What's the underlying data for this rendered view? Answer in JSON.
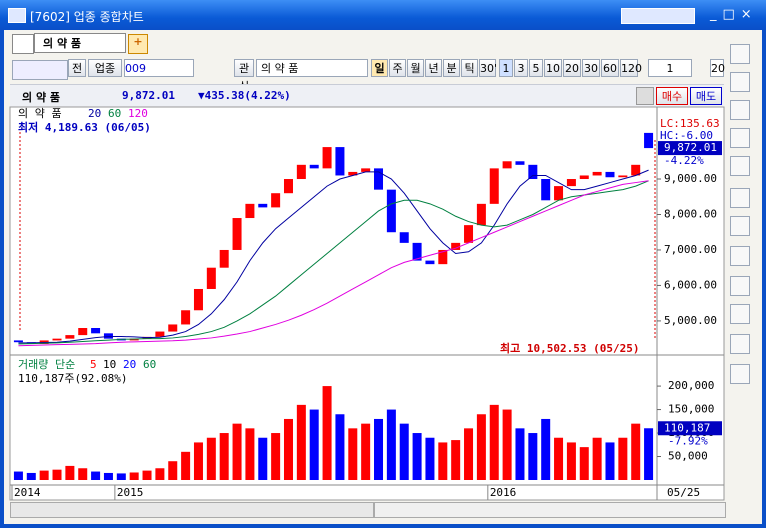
{
  "window": {
    "title": "[7602] 업종 종합차트"
  },
  "toolbar": {
    "tab": "의 약 품",
    "buttons": [
      "전",
      "업종"
    ],
    "code": "009",
    "name": "의 약 품",
    "lookup": "관심",
    "periods": [
      "일",
      "주",
      "월",
      "년",
      "분",
      "틱",
      "30'"
    ],
    "intervals": [
      "1",
      "3",
      "5",
      "10",
      "20",
      "30",
      "60",
      "120"
    ],
    "count": "1",
    "extra": "20"
  },
  "quote": {
    "name": "의 약 품",
    "price": "9,872.01",
    "change": "▼435.38(4.22%)",
    "buy": "매수",
    "sell": "매도"
  },
  "chart_data": [
    {
      "type": "candlestick",
      "title": "의 약 품",
      "up_color": "#ff0000",
      "down_color": "#0000ff",
      "categories": [
        "2014",
        null,
        null,
        null,
        null,
        null,
        null,
        null,
        "2015",
        null,
        null,
        null,
        null,
        null,
        null,
        null,
        null,
        null,
        null,
        null,
        null,
        null,
        null,
        null,
        null,
        null,
        null,
        null,
        null,
        null,
        null,
        null,
        null,
        null,
        null,
        null,
        null,
        "2016",
        null,
        null,
        null,
        null,
        null,
        null,
        null,
        null,
        null,
        null,
        null,
        null
      ],
      "open": [
        4450,
        4400,
        4350,
        4450,
        4500,
        4600,
        4800,
        4650,
        4500,
        4450,
        4500,
        4550,
        4700,
        4900,
        5300,
        5900,
        6500,
        7000,
        7900,
        8300,
        8200,
        8600,
        9000,
        9400,
        9300,
        9900,
        9100,
        9200,
        9300,
        8700,
        7500,
        7200,
        6700,
        6600,
        7000,
        7200,
        7700,
        8300,
        9300,
        9500,
        9400,
        9000,
        8400,
        8800,
        9000,
        9100,
        9200,
        9050,
        9100,
        10300
      ],
      "close": [
        4400,
        4350,
        4450,
        4500,
        4600,
        4800,
        4650,
        4500,
        4450,
        4500,
        4550,
        4700,
        4900,
        5300,
        5900,
        6500,
        7000,
        7900,
        8300,
        8200,
        8600,
        9000,
        9400,
        9300,
        9900,
        9100,
        9200,
        9300,
        8700,
        7500,
        7200,
        6700,
        6600,
        7000,
        7200,
        7700,
        8300,
        9300,
        9500,
        9400,
        9000,
        8400,
        8800,
        9000,
        9100,
        9200,
        9050,
        9100,
        9400,
        9872.01
      ],
      "series": [
        {
          "name": "20",
          "color": "#0000a0",
          "values": [
            4380,
            4380,
            4390,
            4400,
            4430,
            4480,
            4530,
            4560,
            4560,
            4550,
            4530,
            4540,
            4600,
            4700,
            4900,
            5200,
            5600,
            6100,
            6700,
            7200,
            7600,
            7900,
            8200,
            8500,
            8800,
            9000,
            9100,
            9200,
            9200,
            9000,
            8600,
            8100,
            7600,
            7200,
            6900,
            6950,
            7200,
            7700,
            8300,
            8800,
            9100,
            9100,
            8900,
            8700,
            8700,
            8800,
            8900,
            9000,
            9100,
            9250
          ]
        },
        {
          "name": "60",
          "color": "#008040",
          "values": [
            4350,
            4360,
            4370,
            4380,
            4400,
            4420,
            4440,
            4460,
            4480,
            4490,
            4500,
            4500,
            4520,
            4560,
            4620,
            4700,
            4820,
            5000,
            5200,
            5450,
            5700,
            6000,
            6300,
            6600,
            6900,
            7200,
            7500,
            7800,
            8100,
            8300,
            8400,
            8400,
            8300,
            8150,
            7950,
            7800,
            7700,
            7650,
            7700,
            7850,
            8000,
            8200,
            8400,
            8500,
            8550,
            8600,
            8650,
            8700,
            8800,
            8950
          ]
        },
        {
          "name": "120",
          "color": "#e000e0",
          "values": [
            4300,
            4310,
            4320,
            4330,
            4340,
            4350,
            4360,
            4380,
            4400,
            4410,
            4420,
            4430,
            4440,
            4460,
            4490,
            4520,
            4570,
            4630,
            4700,
            4800,
            4900,
            5020,
            5160,
            5320,
            5500,
            5700,
            5900,
            6100,
            6300,
            6500,
            6650,
            6750,
            6850,
            6950,
            7050,
            7200,
            7350,
            7500,
            7650,
            7800,
            7950,
            8100,
            8250,
            8400,
            8550,
            8650,
            8750,
            8850,
            8900,
            8950
          ]
        }
      ],
      "ylim": [
        4180,
        10720
      ],
      "yticks": [
        {
          "value": 5000,
          "label": "5,000.00"
        },
        {
          "value": 6000,
          "label": "6,000.00"
        },
        {
          "value": 7000,
          "label": "7,000.00"
        },
        {
          "value": 8000,
          "label": "8,000.00"
        },
        {
          "value": 9000,
          "label": "9,000.00"
        }
      ],
      "low_label": "최저 4,189.63 (06/05)",
      "high_label": "최고 10,502.53 (05/25)",
      "lc": "LC:135.63",
      "hc": "HC:-6.00",
      "last_label": "9,872.01",
      "last_change": "-4.22%",
      "cursor_date": "05/25"
    },
    {
      "type": "bar",
      "title": "거래량 단순",
      "legend": [
        {
          "name": "5",
          "color": "#ff0000"
        },
        {
          "name": "10",
          "color": "#000000"
        },
        {
          "name": "20",
          "color": "#0000ff"
        },
        {
          "name": "60",
          "color": "#008040"
        }
      ],
      "values": [
        18000,
        15000,
        20000,
        22000,
        30000,
        25000,
        18000,
        15000,
        14000,
        16000,
        20000,
        25000,
        40000,
        60000,
        80000,
        90000,
        100000,
        120000,
        110000,
        90000,
        100000,
        130000,
        160000,
        150000,
        200000,
        140000,
        110000,
        120000,
        130000,
        150000,
        120000,
        100000,
        90000,
        80000,
        85000,
        110000,
        140000,
        160000,
        150000,
        110000,
        100000,
        130000,
        90000,
        80000,
        70000,
        90000,
        80000,
        90000,
        120000,
        110187
      ],
      "ylim": [
        0,
        230000
      ],
      "yticks": [
        {
          "value": 50000,
          "label": "50,000"
        },
        {
          "value": 100000,
          "label": "100,000"
        },
        {
          "value": 150000,
          "label": "150,000"
        },
        {
          "value": 200000,
          "label": "200,000"
        }
      ],
      "summary": "110,187주(92.08%)",
      "last_label": "110,187",
      "last_change": "-7.92%"
    }
  ]
}
